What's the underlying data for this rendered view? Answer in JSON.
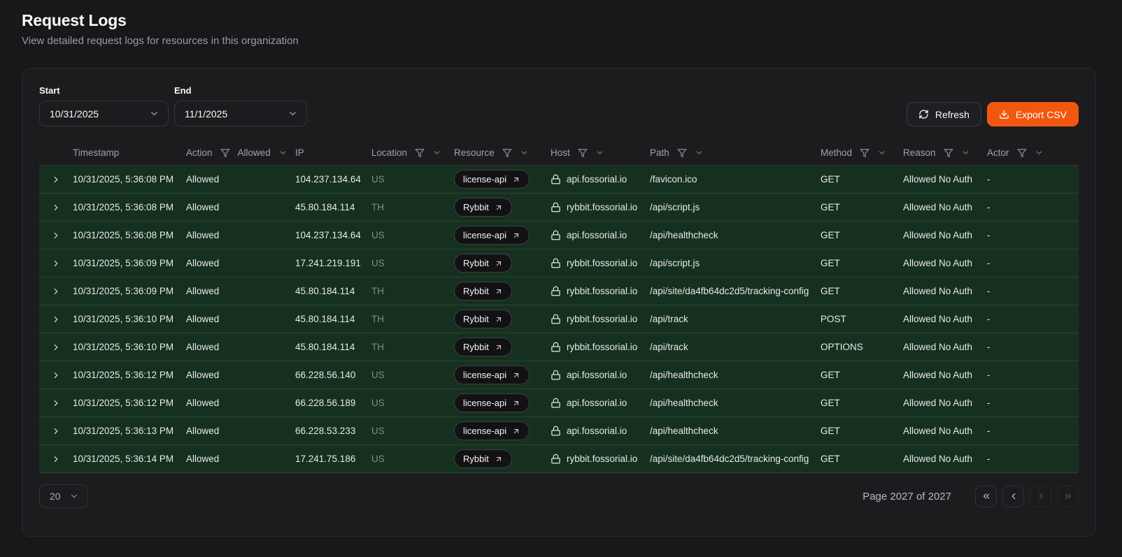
{
  "page": {
    "title": "Request Logs",
    "subtitle": "View detailed request logs for resources in this organization"
  },
  "filters": {
    "start_label": "Start",
    "start_value": "10/31/2025",
    "end_label": "End",
    "end_value": "11/1/2025"
  },
  "toolbar": {
    "refresh_label": "Refresh",
    "export_label": "Export CSV",
    "refresh_icon": "refresh-icon",
    "export_icon": "download-icon"
  },
  "table": {
    "columns": [
      {
        "key": "expander",
        "label": "",
        "filter": false,
        "chevron": false
      },
      {
        "key": "timestamp",
        "label": "Timestamp",
        "filter": false,
        "chevron": false
      },
      {
        "key": "action",
        "label": "Action",
        "filter": true,
        "filter_value": "Allowed",
        "chevron": true
      },
      {
        "key": "ip",
        "label": "IP",
        "filter": false,
        "chevron": false
      },
      {
        "key": "location",
        "label": "Location",
        "filter": true,
        "chevron": true
      },
      {
        "key": "resource",
        "label": "Resource",
        "filter": true,
        "chevron": true
      },
      {
        "key": "host",
        "label": "Host",
        "filter": true,
        "chevron": true
      },
      {
        "key": "path",
        "label": "Path",
        "filter": true,
        "chevron": true
      },
      {
        "key": "method",
        "label": "Method",
        "filter": true,
        "chevron": true
      },
      {
        "key": "reason",
        "label": "Reason",
        "filter": true,
        "chevron": true
      },
      {
        "key": "actor",
        "label": "Actor",
        "filter": true,
        "chevron": true
      }
    ],
    "rows": [
      {
        "timestamp": "10/31/2025, 5:36:08 PM",
        "action": "Allowed",
        "ip": "104.237.134.64",
        "location": "US",
        "resource": "license-api",
        "host": "api.fossorial.io",
        "path": "/favicon.ico",
        "method": "GET",
        "reason": "Allowed No Auth",
        "actor": "-"
      },
      {
        "timestamp": "10/31/2025, 5:36:08 PM",
        "action": "Allowed",
        "ip": "45.80.184.114",
        "location": "TH",
        "resource": "Rybbit",
        "host": "rybbit.fossorial.io",
        "path": "/api/script.js",
        "method": "GET",
        "reason": "Allowed No Auth",
        "actor": "-"
      },
      {
        "timestamp": "10/31/2025, 5:36:08 PM",
        "action": "Allowed",
        "ip": "104.237.134.64",
        "location": "US",
        "resource": "license-api",
        "host": "api.fossorial.io",
        "path": "/api/healthcheck",
        "method": "GET",
        "reason": "Allowed No Auth",
        "actor": "-"
      },
      {
        "timestamp": "10/31/2025, 5:36:09 PM",
        "action": "Allowed",
        "ip": "17.241.219.191",
        "location": "US",
        "resource": "Rybbit",
        "host": "rybbit.fossorial.io",
        "path": "/api/script.js",
        "method": "GET",
        "reason": "Allowed No Auth",
        "actor": "-"
      },
      {
        "timestamp": "10/31/2025, 5:36:09 PM",
        "action": "Allowed",
        "ip": "45.80.184.114",
        "location": "TH",
        "resource": "Rybbit",
        "host": "rybbit.fossorial.io",
        "path": "/api/site/da4fb64dc2d5/tracking-config",
        "method": "GET",
        "reason": "Allowed No Auth",
        "actor": "-"
      },
      {
        "timestamp": "10/31/2025, 5:36:10 PM",
        "action": "Allowed",
        "ip": "45.80.184.114",
        "location": "TH",
        "resource": "Rybbit",
        "host": "rybbit.fossorial.io",
        "path": "/api/track",
        "method": "POST",
        "reason": "Allowed No Auth",
        "actor": "-"
      },
      {
        "timestamp": "10/31/2025, 5:36:10 PM",
        "action": "Allowed",
        "ip": "45.80.184.114",
        "location": "TH",
        "resource": "Rybbit",
        "host": "rybbit.fossorial.io",
        "path": "/api/track",
        "method": "OPTIONS",
        "reason": "Allowed No Auth",
        "actor": "-"
      },
      {
        "timestamp": "10/31/2025, 5:36:12 PM",
        "action": "Allowed",
        "ip": "66.228.56.140",
        "location": "US",
        "resource": "license-api",
        "host": "api.fossorial.io",
        "path": "/api/healthcheck",
        "method": "GET",
        "reason": "Allowed No Auth",
        "actor": "-"
      },
      {
        "timestamp": "10/31/2025, 5:36:12 PM",
        "action": "Allowed",
        "ip": "66.228.56.189",
        "location": "US",
        "resource": "license-api",
        "host": "api.fossorial.io",
        "path": "/api/healthcheck",
        "method": "GET",
        "reason": "Allowed No Auth",
        "actor": "-"
      },
      {
        "timestamp": "10/31/2025, 5:36:13 PM",
        "action": "Allowed",
        "ip": "66.228.53.233",
        "location": "US",
        "resource": "license-api",
        "host": "api.fossorial.io",
        "path": "/api/healthcheck",
        "method": "GET",
        "reason": "Allowed No Auth",
        "actor": "-"
      },
      {
        "timestamp": "10/31/2025, 5:36:14 PM",
        "action": "Allowed",
        "ip": "17.241.75.186",
        "location": "US",
        "resource": "Rybbit",
        "host": "rybbit.fossorial.io",
        "path": "/api/site/da4fb64dc2d5/tracking-config",
        "method": "GET",
        "reason": "Allowed No Auth",
        "actor": "-"
      }
    ],
    "row_icons": {
      "expander": "chevron-right-icon",
      "resource_link": "arrow-up-right-icon",
      "host": "lock-icon"
    },
    "header_icons": {
      "filter": "funnel-icon",
      "menu": "chevron-down-icon"
    }
  },
  "pagination": {
    "page_size": "20",
    "page_info": "Page 2027 of 2027",
    "buttons": [
      "first",
      "prev",
      "next",
      "last"
    ],
    "disabled_buttons": [
      "next",
      "last"
    ]
  },
  "colors": {
    "accent_orange": "#f1570e",
    "allowed_row_green": "#16301f",
    "page_background": "#18181a",
    "card_background": "#1c1c1f"
  }
}
